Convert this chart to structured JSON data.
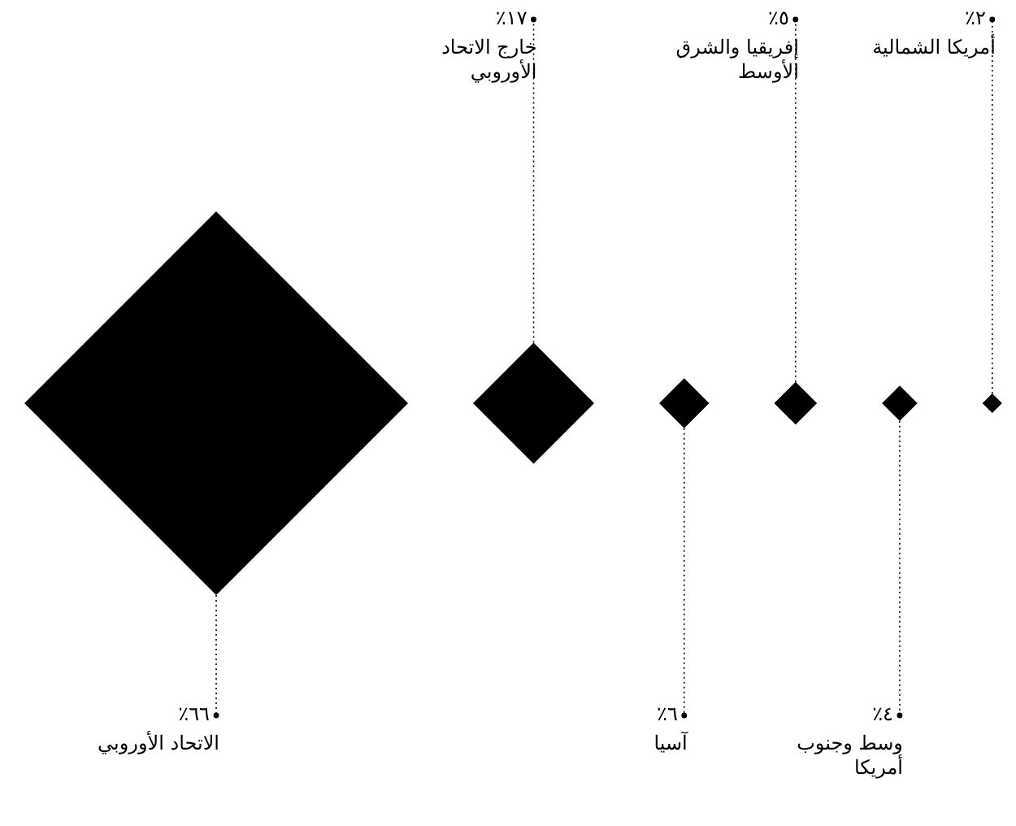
{
  "chart_data": {
    "type": "other",
    "categories": [
      "الاتحاد الأوروبي",
      "خارج الاتحاد الأوروبي",
      "آسيا",
      "إفريقيا والشرق الأوسط",
      "وسط وجنوب أمريكا",
      "أمريكا الشمالية"
    ],
    "values": [
      66,
      17,
      6,
      5,
      4,
      2
    ],
    "value_labels": [
      "٦٦٪",
      "١٧٪",
      "٦٪",
      "٥٪",
      "٤٪",
      "٢٪"
    ],
    "color": "#000000"
  }
}
